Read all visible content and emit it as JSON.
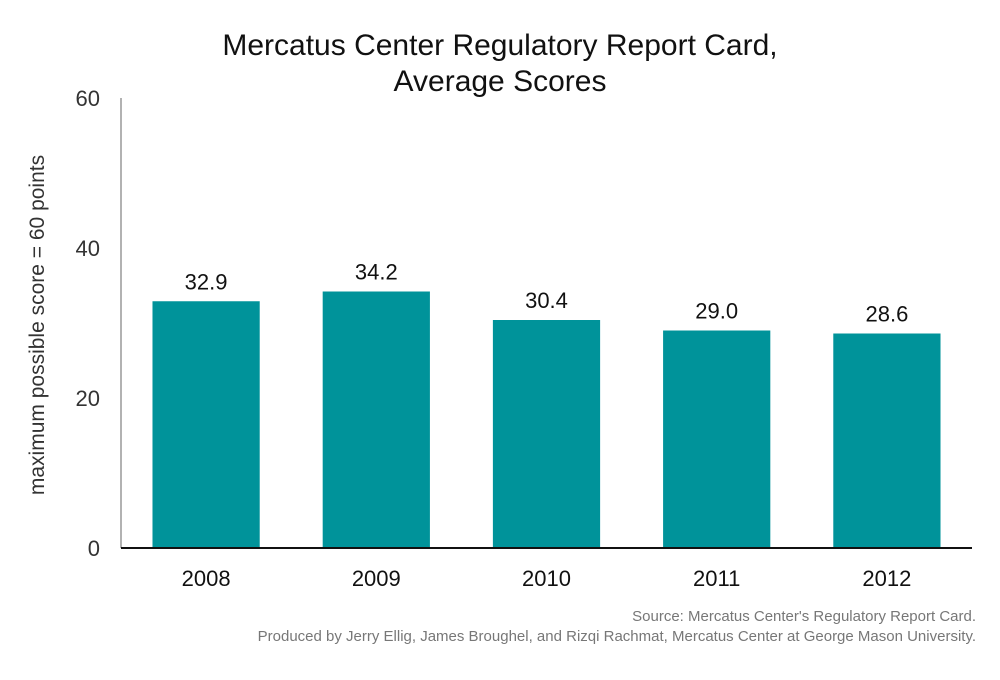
{
  "chart_data": {
    "type": "bar",
    "title_lines": [
      "Mercatus Center Regulatory Report Card,",
      "Average Scores"
    ],
    "xlabel": "",
    "ylabel": "maximum possible score = 60 points",
    "categories": [
      "2008",
      "2009",
      "2010",
      "2011",
      "2012"
    ],
    "values": [
      32.9,
      34.2,
      30.4,
      29.0,
      28.6
    ],
    "value_labels": [
      "32.9",
      "34.2",
      "30.4",
      "29.0",
      "28.6"
    ],
    "ylim": [
      0,
      60
    ],
    "yticks": [
      0,
      20,
      40,
      60
    ],
    "grid": false,
    "legend": "none",
    "bar_color": "#00939a"
  },
  "footer": {
    "source": "Source: Mercatus Center's Regulatory Report Card.",
    "credit": "Produced by Jerry Ellig, James Broughel, and Rizqi Rachmat, Mercatus Center at George Mason University."
  }
}
